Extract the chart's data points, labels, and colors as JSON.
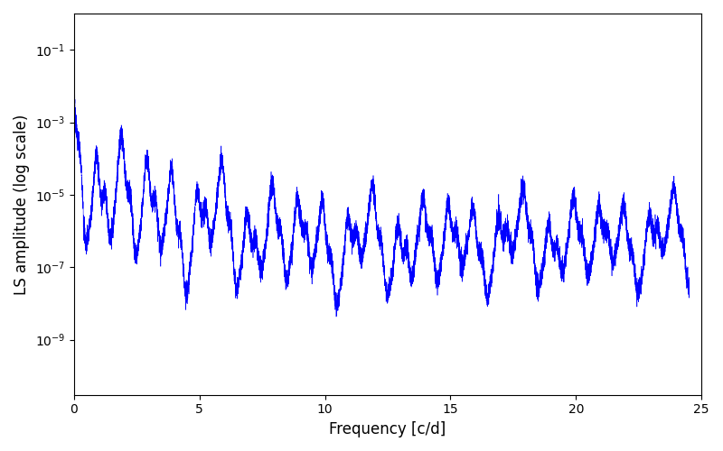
{
  "xlabel": "Frequency [c/d]",
  "ylabel": "LS amplitude (log scale)",
  "line_color": "blue",
  "xlim": [
    0,
    25
  ],
  "ylim": [
    3e-11,
    1.0
  ],
  "figsize": [
    8.0,
    5.0
  ],
  "dpi": 100,
  "freq_max": 24.5,
  "n_points": 12000,
  "seed": 123,
  "yticks": [
    1e-09,
    1e-07,
    1e-05,
    0.001,
    0.1
  ],
  "xticks": [
    0,
    5,
    10,
    15,
    20,
    25
  ],
  "linewidth": 0.4
}
